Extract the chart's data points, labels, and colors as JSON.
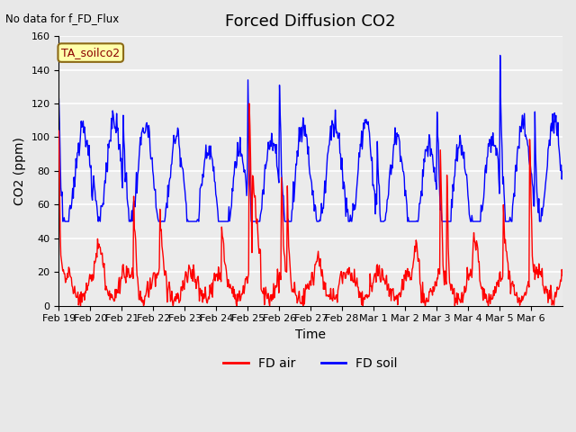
{
  "title": "Forced Diffusion CO2",
  "top_left_text": "No data for f_FD_Flux",
  "annotation_box": "TA_soilco2",
  "xlabel": "Time",
  "ylabel": "CO2 (ppm)",
  "ylim": [
    0,
    160
  ],
  "yticks": [
    0,
    20,
    40,
    60,
    80,
    100,
    120,
    140,
    160
  ],
  "xtick_labels": [
    "Feb 19",
    "Feb 20",
    "Feb 21",
    "Feb 22",
    "Feb 23",
    "Feb 24",
    "Feb 25",
    "Feb 26",
    "Feb 27",
    "Feb 28",
    "Mar 1",
    "Mar 2",
    "Mar 3",
    "Mar 4",
    "Mar 5",
    "Mar 6"
  ],
  "legend_labels": [
    "FD air",
    "FD soil"
  ],
  "legend_colors": [
    "#ff0000",
    "#0000ff"
  ],
  "background_color": "#e8e8e8",
  "plot_bg_color": "#ebebeb",
  "grid_color": "#ffffff",
  "line_width": 1.0,
  "title_fontsize": 13,
  "axis_label_fontsize": 10,
  "tick_fontsize": 8
}
